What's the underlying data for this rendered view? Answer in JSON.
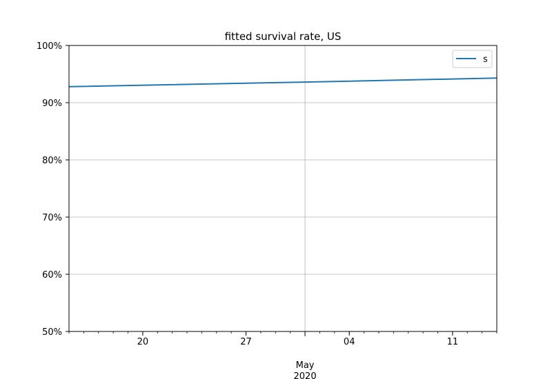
{
  "chart_data": {
    "type": "line",
    "title": "fitted survival rate, US",
    "xlabel": "",
    "ylabel": "",
    "x_range": [
      "2020-04-15",
      "2020-05-14"
    ],
    "x_ticks": [
      {
        "date": "2020-04-20",
        "label": "20"
      },
      {
        "date": "2020-04-27",
        "label": "27"
      },
      {
        "date": "2020-05-04",
        "label": "04"
      },
      {
        "date": "2020-05-11",
        "label": "11"
      }
    ],
    "x_month_label": {
      "date": "2020-05-01",
      "month": "May",
      "year": "2020"
    },
    "y_range": [
      0.5,
      1.0
    ],
    "y_ticks": [
      {
        "value": 0.5,
        "label": "50%"
      },
      {
        "value": 0.6,
        "label": "60%"
      },
      {
        "value": 0.7,
        "label": "70%"
      },
      {
        "value": 0.8,
        "label": "80%"
      },
      {
        "value": 0.9,
        "label": "90%"
      },
      {
        "value": 1.0,
        "label": "100%"
      }
    ],
    "grid": true,
    "legend_position": "top-right",
    "series": [
      {
        "name": "s",
        "color": "#1f77b4",
        "x": [
          "2020-04-15",
          "2020-05-01",
          "2020-05-14"
        ],
        "values": [
          0.928,
          0.936,
          0.943
        ]
      }
    ]
  }
}
